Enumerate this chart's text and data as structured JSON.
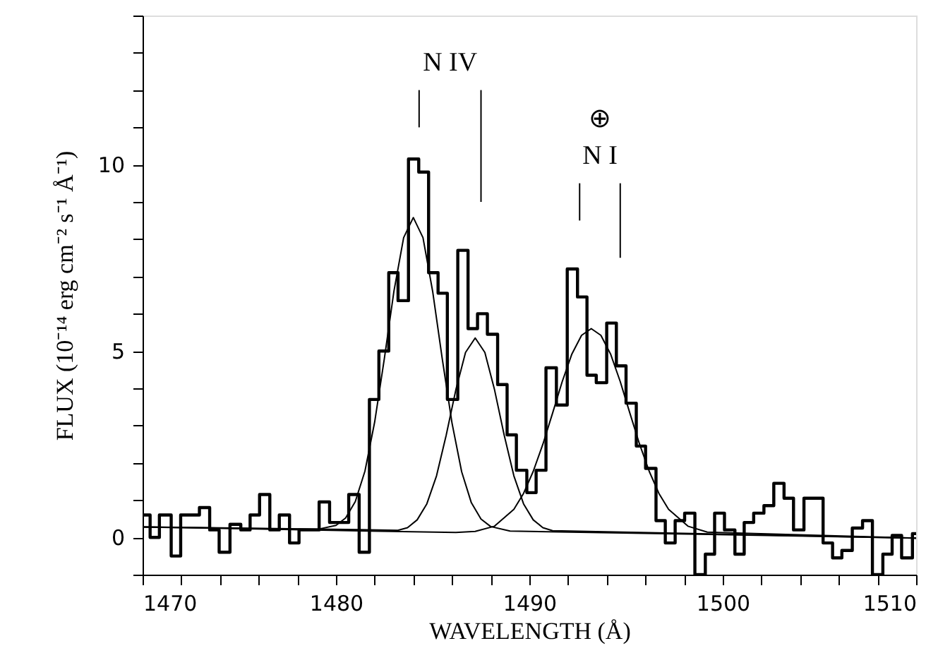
{
  "chart_data": {
    "type": "step",
    "xlabel": "WAVELENGTH (Å)",
    "ylabel": "FLUX (10⁻¹⁴ erg cm⁻² s⁻¹ Å⁻¹)",
    "xlim": [
      1470,
      1510
    ],
    "ylim": [
      -1,
      14
    ],
    "xticks": [
      1470,
      {
        "value": 1472,
        "label": null
      },
      {
        "value": 1474,
        "label": null
      },
      {
        "value": 1476,
        "label": null
      },
      {
        "value": 1478,
        "label": null
      },
      1480,
      {
        "value": 1482,
        "label": null
      },
      {
        "value": 1484,
        "label": null
      },
      {
        "value": 1486,
        "label": null
      },
      {
        "value": 1488,
        "label": null
      },
      1490,
      {
        "value": 1492,
        "label": null
      },
      {
        "value": 1494,
        "label": null
      },
      {
        "value": 1496,
        "label": null
      },
      {
        "value": 1498,
        "label": null
      },
      1500,
      {
        "value": 1502,
        "label": null
      },
      {
        "value": 1504,
        "label": null
      },
      {
        "value": 1506,
        "label": null
      },
      {
        "value": 1508,
        "label": null
      },
      1510
    ],
    "yticks": [
      {
        "value": -1,
        "label": null
      },
      0,
      {
        "value": 1,
        "label": null
      },
      {
        "value": 2,
        "label": null
      },
      {
        "value": 3,
        "label": null
      },
      {
        "value": 4,
        "label": null
      },
      5,
      {
        "value": 6,
        "label": null
      },
      {
        "value": 7,
        "label": null
      },
      {
        "value": 8,
        "label": null
      },
      {
        "value": 9,
        "label": null
      },
      10,
      {
        "value": 11,
        "label": null
      },
      {
        "value": 12,
        "label": null
      },
      {
        "value": 13,
        "label": null
      },
      {
        "value": 14,
        "label": null
      }
    ],
    "grid": false,
    "series": [
      {
        "color": "#000000",
        "x": [
          1470,
          1470.39,
          1470.87,
          1471.48,
          1471.97,
          1472.94,
          1473.47,
          1473.96,
          1474.52,
          1475.08,
          1475.56,
          1476.05,
          1476.58,
          1477.07,
          1477.6,
          1478.09,
          1479.13,
          1479.67,
          1480.66,
          1481.2,
          1481.73,
          1482.22,
          1482.73,
          1483.21,
          1483.75,
          1484.28,
          1484.79,
          1485.28,
          1485.76,
          1486.3,
          1486.83,
          1487.32,
          1487.83,
          1488.36,
          1488.85,
          1489.33,
          1489.87,
          1490.35,
          1490.86,
          1491.4,
          1491.96,
          1492.49,
          1492.98,
          1493.46,
          1494.0,
          1494.5,
          1495.0,
          1495.53,
          1496.01,
          1496.55,
          1497.03,
          1497.54,
          1498.03,
          1498.56,
          1499.1,
          1499.58,
          1500.09,
          1500.63,
          1501.11,
          1501.6,
          1502.13,
          1502.64,
          1503.17,
          1503.66,
          1504.2,
          1505.19,
          1505.68,
          1506.16,
          1506.7,
          1507.23,
          1507.74,
          1508.28,
          1508.76,
          1509.25,
          1509.81
        ],
        "values": [
          0.6,
          0.0,
          0.6,
          -0.5,
          0.6,
          0.8,
          0.2,
          -0.4,
          0.35,
          0.2,
          0.6,
          1.15,
          0.2,
          0.6,
          -0.15,
          0.2,
          0.95,
          0.4,
          1.15,
          -0.4,
          3.7,
          5.0,
          7.1,
          6.35,
          10.15,
          9.8,
          7.1,
          6.55,
          3.7,
          7.7,
          5.6,
          6.0,
          5.45,
          4.1,
          2.75,
          1.8,
          1.2,
          1.8,
          4.55,
          3.55,
          7.2,
          6.45,
          4.35,
          4.15,
          5.75,
          4.6,
          3.6,
          2.45,
          1.85,
          0.45,
          -0.15,
          0.45,
          0.65,
          -1.0,
          -0.45,
          0.65,
          0.2,
          -0.45,
          0.4,
          0.65,
          0.85,
          1.45,
          1.05,
          0.2,
          1.05,
          -0.15,
          -0.55,
          -0.35,
          0.25,
          0.45,
          -1.0,
          -0.45,
          0.05,
          -0.55,
          0.1
        ]
      },
      {
        "type": "line",
        "color": "#000000",
        "x": [
          1470,
          1479,
          1480,
          1480.5,
          1481,
          1481.5,
          1482,
          1482.5,
          1483,
          1483.5,
          1484,
          1484.5,
          1485,
          1485.5,
          1486,
          1486.5,
          1487,
          1487.5,
          1488,
          1489,
          1510
        ],
        "values": [
          0.28,
          0.21,
          0.32,
          0.52,
          0.96,
          1.78,
          3.09,
          4.79,
          6.61,
          8.04,
          8.58,
          8.04,
          6.6,
          4.78,
          3.07,
          1.76,
          0.93,
          0.49,
          0.29,
          0.17,
          -0.02
        ]
      },
      {
        "type": "line",
        "color": "#000000",
        "x": [
          1470,
          1482.2,
          1483.2,
          1483.7,
          1484.2,
          1484.7,
          1485.2,
          1485.7,
          1486.2,
          1486.7,
          1487.2,
          1487.7,
          1488.2,
          1488.7,
          1489.2,
          1489.7,
          1490.2,
          1490.7,
          1491.2,
          1510
        ],
        "values": [
          0.28,
          0.2,
          0.19,
          0.26,
          0.47,
          0.9,
          1.65,
          2.74,
          3.96,
          4.96,
          5.35,
          4.96,
          3.96,
          2.74,
          1.65,
          0.9,
          0.47,
          0.26,
          0.18,
          -0.02
        ]
      },
      {
        "type": "line",
        "color": "#000000",
        "x": [
          1470,
          1486.2,
          1487.2,
          1488.2,
          1489.2,
          1489.7,
          1490.2,
          1490.7,
          1491.2,
          1491.7,
          1492.2,
          1492.7,
          1493.2,
          1493.7,
          1494.2,
          1494.7,
          1495.2,
          1495.7,
          1496.2,
          1496.7,
          1497.2,
          1498.2,
          1499.2,
          1510
        ],
        "values": [
          0.28,
          0.13,
          0.16,
          0.3,
          0.75,
          1.18,
          1.77,
          2.5,
          3.33,
          4.18,
          4.92,
          5.42,
          5.6,
          5.42,
          4.92,
          4.18,
          3.33,
          2.5,
          1.77,
          1.18,
          0.75,
          0.3,
          0.14,
          -0.02
        ]
      },
      {
        "type": "line",
        "color": "#000000",
        "x": [
          1484.3,
          1484.3
        ],
        "values": [
          11.0,
          12.0
        ]
      },
      {
        "type": "line",
        "color": "#000000",
        "x": [
          1487.5,
          1487.5
        ],
        "values": [
          9.0,
          12.0
        ]
      },
      {
        "type": "line",
        "color": "#000000",
        "x": [
          1492.6,
          1492.6
        ],
        "values": [
          8.5,
          9.5
        ]
      },
      {
        "type": "line",
        "color": "#000000",
        "x": [
          1494.7,
          1494.7
        ],
        "values": [
          7.5,
          9.5
        ]
      }
    ],
    "annotations": [
      "N IV",
      "⊕",
      "N I"
    ]
  }
}
